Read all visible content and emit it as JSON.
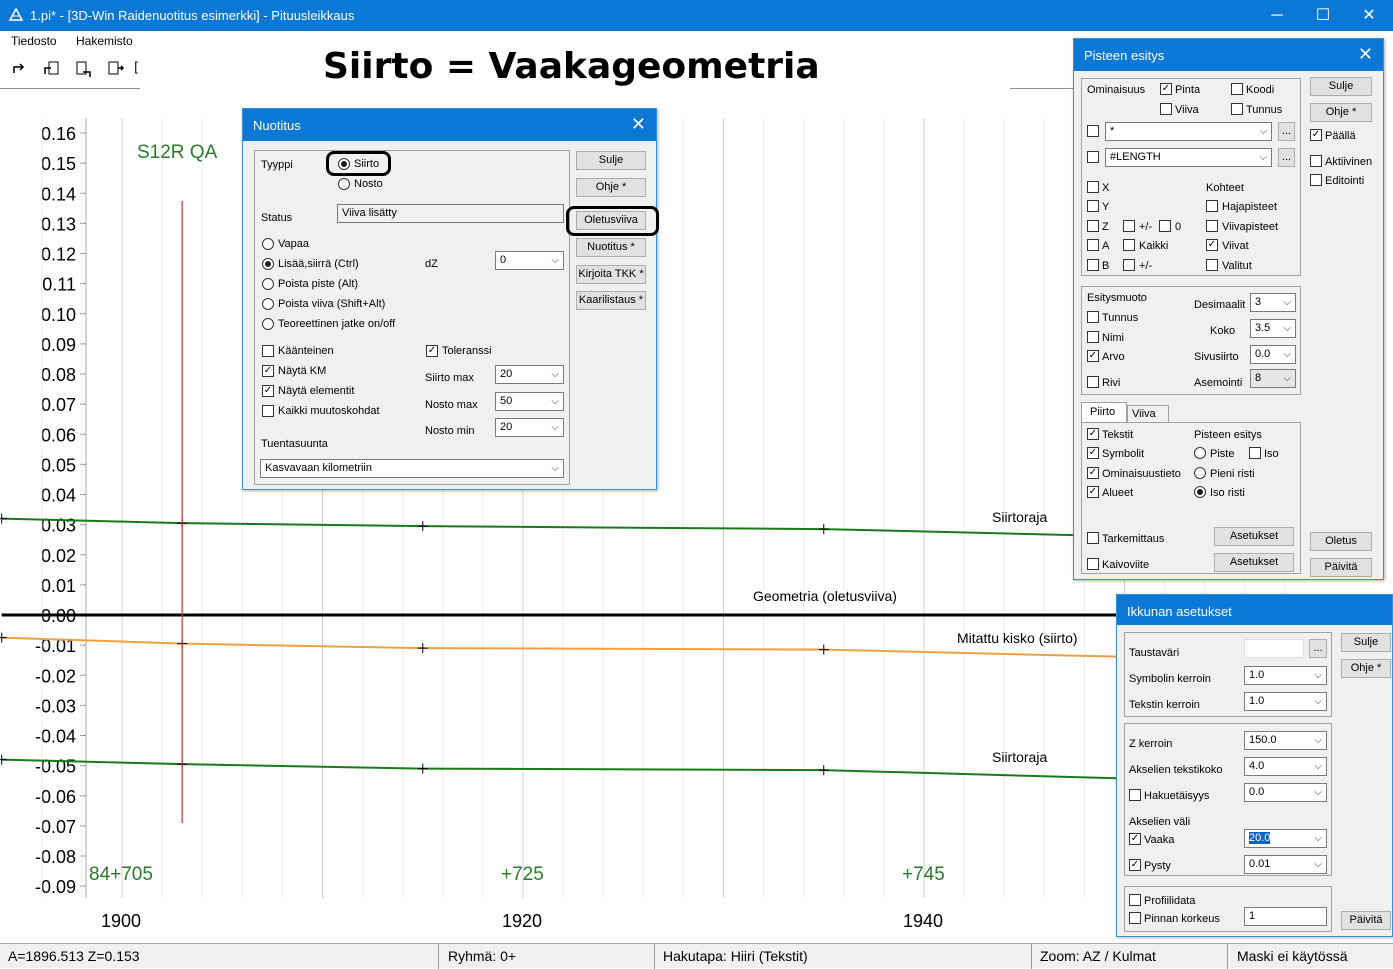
{
  "window": {
    "title": "1.pi* - [3D-Win Raidenuotitus esimerkki] - Pituusleikkaus",
    "minimize": "─",
    "maximize": "☐",
    "close": "✕"
  },
  "menu": [
    "Tiedosto",
    "Hakemisto"
  ],
  "headline": "Siirto = Vaakageometria",
  "plot": {
    "label_top": "S12R QA",
    "y_ticks": [
      "0.16",
      "0.15",
      "0.14",
      "0.13",
      "0.12",
      "0.11",
      "0.10",
      "0.09",
      "0.08",
      "0.07",
      "0.06",
      "0.05",
      "0.04",
      "0.03",
      "0.02",
      "0.01",
      "0.00",
      "-0.01",
      "-0.02",
      "-0.03",
      "-0.04",
      "-0.05",
      "-0.06",
      "-0.07",
      "-0.08",
      "-0.09"
    ],
    "x_ticks": [
      "1900",
      "1920",
      "1940"
    ],
    "km_labels": [
      "84+705",
      "+725",
      "+745"
    ],
    "line_labels": {
      "upper": "Siirtoraja",
      "center": "Geometria (oletusviiva)",
      "measured": "Mitattu kisko (siirto)",
      "lower": "Siirtoraja"
    },
    "colors": {
      "limit": "#1a7a1a",
      "measured": "#f0a040",
      "cursor": "#d03030",
      "km": "#2a7a2a"
    }
  },
  "chart_data": {
    "type": "line",
    "xlabel": "",
    "ylabel": "",
    "ylim": [
      -0.09,
      0.16
    ],
    "xlim": [
      1894,
      1960
    ],
    "series": [
      {
        "name": "Siirtoraja",
        "x": [
          1894,
          1903,
          1915,
          1935,
          1954
        ],
        "y": [
          0.032,
          0.0305,
          0.0295,
          0.0285,
          0.0255
        ]
      },
      {
        "name": "Geometria (oletusviiva)",
        "x": [
          1894,
          1960
        ],
        "y": [
          0.0,
          0.0
        ]
      },
      {
        "name": "Mitattu kisko (siirto)",
        "x": [
          1894,
          1903,
          1915,
          1935,
          1954
        ],
        "y": [
          -0.0075,
          -0.0095,
          -0.011,
          -0.0115,
          -0.0145
        ]
      },
      {
        "name": "Siirtoraja",
        "x": [
          1894,
          1903,
          1915,
          1935,
          1954
        ],
        "y": [
          -0.048,
          -0.0495,
          -0.051,
          -0.0515,
          -0.055
        ]
      }
    ],
    "cursor_x": 1903
  },
  "status": {
    "pos": "A=1896.513  Z=0.153",
    "group": "Ryhmä: 0+",
    "mode": "Hakutapa: Hiiri (Tekstit)",
    "zoom": "Zoom: AZ  /  Kulmat",
    "mask": "Maski ei käytössä"
  },
  "nuotitus": {
    "title": "Nuotitus",
    "tyyppi": "Tyyppi",
    "siirto": "Siirto",
    "nosto": "Nosto",
    "status_label": "Status",
    "status_value": "Viiva lisätty",
    "modes": [
      "Vapaa",
      "Lisää,siirrä  (Ctrl)",
      "Poista piste  (Alt)",
      "Poista viiva  (Shift+Alt)",
      "Teoreettinen jatke on/off"
    ],
    "dz_label": "dZ",
    "dz_value": "0",
    "kaanteinen": "Käänteinen",
    "nayta_km": "Näytä KM",
    "nayta_elementit": "Näytä elementit",
    "kaikki": "Kaikki muutoskohdat",
    "toleranssi": "Toleranssi",
    "siirto_max": "Siirto max",
    "siirto_max_v": "20",
    "nosto_max": "Nosto max",
    "nosto_max_v": "50",
    "nosto_min": "Nosto min",
    "nosto_min_v": "20",
    "tuentasuunta": "Tuentasuunta",
    "tuentasuunta_v": "Kasvavaan kilometriin",
    "buttons": [
      "Sulje",
      "Ohje *",
      "Oletusviiva",
      "Nuotitus *",
      "Kirjoita TKK *",
      "Kaarilistaus *"
    ]
  },
  "pisteen": {
    "title": "Pisteen esitys",
    "ominaisuus": "Ominaisuus",
    "pinta": "Pinta",
    "koodi": "Koodi",
    "viiva": "Viiva",
    "tunnus": "Tunnus",
    "filter1": "*",
    "filter2": "#LENGTH",
    "dots": "...",
    "xyz": [
      "X",
      "Y",
      "Z",
      "A",
      "B"
    ],
    "pm": "+/-",
    "zero": "0",
    "kaikki": "Kaikki",
    "kohteet": "Kohteet",
    "kohteet_items": [
      "Hajapisteet",
      "Viivapisteet",
      "Viivat",
      "Valitut"
    ],
    "esitysmuoto": "Esitysmuoto",
    "esitys_items": [
      "Tunnus",
      "Nimi",
      "Arvo",
      "Rivi"
    ],
    "desimaalit": "Desimaalit",
    "desimaalit_v": "3",
    "koko": "Koko",
    "koko_v": "3.5",
    "sivusiirto": "Sivusiirto",
    "sivusiirto_v": "0.0",
    "asemointi": "Asemointi",
    "asemointi_v": "8",
    "tab_piirto": "Piirto",
    "tab_viiva": "Viiva",
    "piirto_items": [
      "Tekstit",
      "Symbolit",
      "Ominaisuustieto",
      "Alueet"
    ],
    "pisteen_esitys": "Pisteen esitys",
    "piste": "Piste",
    "iso": "Iso",
    "pieni_risti": "Pieni risti",
    "iso_risti": "Iso risti",
    "tarkemittaus": "Tarkemittaus",
    "kaivoviite": "Kaivoviite",
    "asetukset": "Asetukset",
    "sulje": "Sulje",
    "ohje": "Ohje *",
    "paalla": "Päällä",
    "aktiivinen": "Aktiivinen",
    "editointi": "Editointi",
    "oletus": "Oletus",
    "paivita": "Päivitä"
  },
  "ikkunan": {
    "title": "Ikkunan asetukset",
    "taustavari": "Taustaväri",
    "dots": "...",
    "symbolin": "Symbolin kerroin",
    "symbolin_v": "1.0",
    "tekstin": "Tekstin kerroin",
    "tekstin_v": "1.0",
    "zkerroin": "Z kerroin",
    "zkerroin_v": "150.0",
    "akselien_teksti": "Akselien tekstikoko",
    "akselien_teksti_v": "4.0",
    "hakuetaisyys": "Hakuetäisyys",
    "hakuetaisyys_v": "0.0",
    "akselien_vali": "Akselien väli",
    "vaaka": "Vaaka",
    "vaaka_v": "20.0",
    "pysty": "Pysty",
    "pysty_v": "0.01",
    "profiilidata": "Profiilidata",
    "pinnan": "Pinnan korkeus",
    "pinnan_v": "1",
    "sulje": "Sulje",
    "ohje": "Ohje *",
    "paivita": "Päivitä"
  }
}
